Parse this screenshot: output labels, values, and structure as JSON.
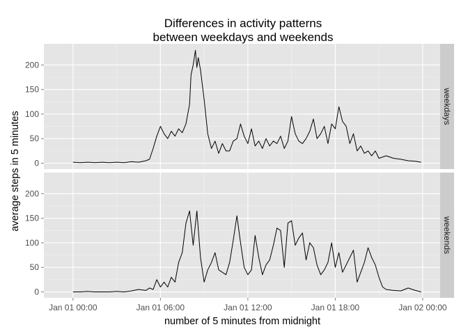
{
  "chart_data": {
    "type": "line",
    "title_lines": [
      "Differences in activity patterns",
      "between weekdays and weekends"
    ],
    "xlabel": "number of 5 minutes from midnight",
    "ylabel": "average steps in 5 minutes",
    "x_unit": "hours since Jan 01 00:00",
    "xlim": [
      -2,
      25.2
    ],
    "ylim": [
      -12,
      243
    ],
    "x_ticks": [
      {
        "value": 0,
        "label": "Jan 01 00:00"
      },
      {
        "value": 6,
        "label": "Jan 01 06:00"
      },
      {
        "value": 12,
        "label": "Jan 01 12:00"
      },
      {
        "value": 18,
        "label": "Jan 01 18:00"
      },
      {
        "value": 24,
        "label": "Jan 02 00:00"
      }
    ],
    "y_ticks": [
      0,
      50,
      100,
      150,
      200
    ],
    "grid": true,
    "line_color": "#000000",
    "panel_bg": "#e5e5e5",
    "strip_bg": "#cccccc",
    "grid_color": "#ffffff",
    "facets": [
      {
        "name": "weekdays",
        "x": [
          0,
          0.5,
          1,
          1.5,
          2,
          2.5,
          3,
          3.5,
          4,
          4.5,
          5,
          5.25,
          5.5,
          5.75,
          6,
          6.25,
          6.5,
          6.75,
          7,
          7.25,
          7.5,
          7.75,
          8,
          8.1,
          8.25,
          8.4,
          8.5,
          8.6,
          8.75,
          9,
          9.25,
          9.5,
          9.75,
          10,
          10.25,
          10.5,
          10.75,
          11,
          11.25,
          11.5,
          11.75,
          12,
          12.25,
          12.5,
          12.75,
          13,
          13.25,
          13.5,
          13.75,
          14,
          14.25,
          14.5,
          14.75,
          15,
          15.25,
          15.5,
          15.75,
          16,
          16.25,
          16.5,
          16.75,
          17,
          17.25,
          17.5,
          17.75,
          18,
          18.25,
          18.5,
          18.75,
          19,
          19.25,
          19.5,
          19.75,
          20,
          20.25,
          20.5,
          20.75,
          21,
          21.5,
          22,
          22.5,
          23,
          23.5,
          23.9
        ],
        "y": [
          2,
          1,
          2,
          1,
          2,
          1,
          2,
          1,
          3,
          2,
          5,
          8,
          30,
          55,
          75,
          60,
          50,
          65,
          55,
          70,
          62,
          80,
          120,
          180,
          200,
          230,
          195,
          215,
          190,
          130,
          60,
          30,
          45,
          20,
          40,
          25,
          25,
          45,
          50,
          80,
          55,
          40,
          70,
          35,
          45,
          30,
          50,
          35,
          45,
          40,
          55,
          30,
          45,
          95,
          60,
          45,
          40,
          50,
          65,
          90,
          50,
          60,
          75,
          40,
          80,
          70,
          115,
          85,
          75,
          40,
          60,
          25,
          35,
          20,
          25,
          15,
          25,
          10,
          15,
          10,
          8,
          5,
          4,
          2
        ]
      },
      {
        "name": "weekends",
        "x": [
          0,
          0.5,
          1,
          1.5,
          2,
          2.5,
          3,
          3.5,
          4,
          4.5,
          5,
          5.25,
          5.5,
          5.75,
          6,
          6.25,
          6.5,
          6.75,
          7,
          7.25,
          7.5,
          7.75,
          8,
          8.25,
          8.5,
          8.75,
          9,
          9.25,
          9.5,
          9.75,
          10,
          10.25,
          10.5,
          10.75,
          11,
          11.25,
          11.5,
          11.75,
          12,
          12.25,
          12.5,
          12.75,
          13,
          13.25,
          13.5,
          13.75,
          14,
          14.25,
          14.5,
          14.75,
          15,
          15.25,
          15.5,
          15.75,
          16,
          16.25,
          16.5,
          16.75,
          17,
          17.25,
          17.5,
          17.75,
          18,
          18.25,
          18.5,
          18.75,
          19,
          19.25,
          19.5,
          19.75,
          20,
          20.25,
          20.5,
          20.75,
          21,
          21.25,
          21.5,
          22,
          22.5,
          23,
          23.5,
          23.9
        ],
        "y": [
          0,
          0,
          1,
          0,
          0,
          0,
          1,
          0,
          2,
          5,
          3,
          8,
          5,
          25,
          10,
          20,
          10,
          30,
          20,
          60,
          80,
          140,
          165,
          95,
          165,
          70,
          20,
          45,
          60,
          80,
          45,
          40,
          35,
          60,
          105,
          155,
          100,
          50,
          35,
          45,
          115,
          70,
          35,
          55,
          65,
          95,
          130,
          125,
          50,
          140,
          145,
          95,
          110,
          120,
          65,
          100,
          90,
          55,
          35,
          45,
          60,
          100,
          50,
          80,
          40,
          55,
          70,
          85,
          20,
          40,
          60,
          90,
          70,
          55,
          30,
          10,
          5,
          3,
          2,
          8,
          3,
          0
        ]
      }
    ]
  }
}
